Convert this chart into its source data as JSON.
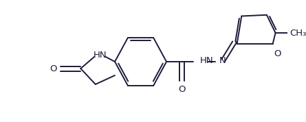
{
  "bg_color": "#ffffff",
  "line_color": "#1a1a3a",
  "line_width": 1.4,
  "figsize": [
    4.45,
    1.78
  ],
  "dpi": 100,
  "xlim": [
    0,
    445
  ],
  "ylim": [
    0,
    178
  ]
}
